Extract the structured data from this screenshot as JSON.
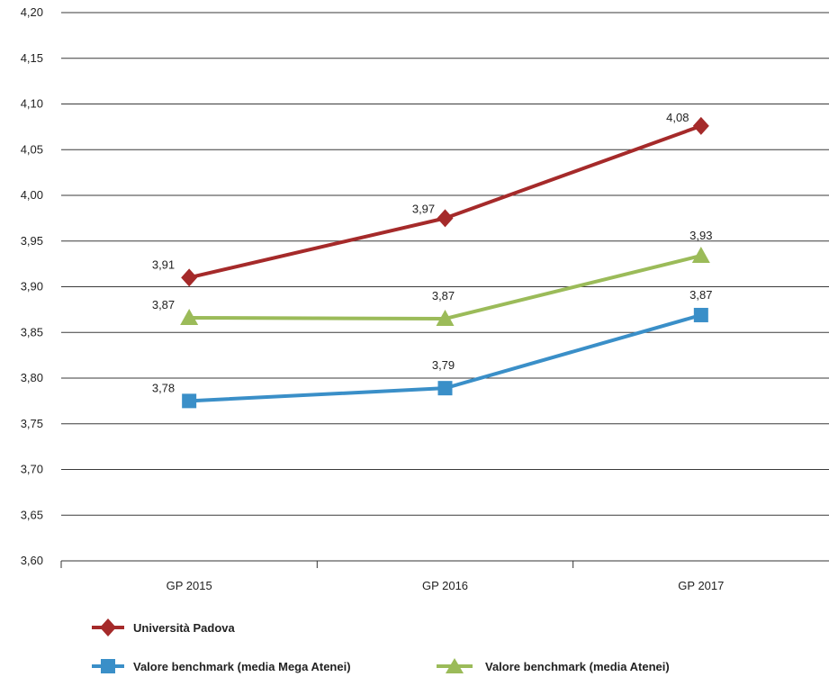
{
  "chart_data": {
    "type": "line",
    "categories": [
      "GP 2015",
      "GP 2016",
      "GP 2017"
    ],
    "ylim": [
      3.6,
      4.2
    ],
    "ytick_step": 0.05,
    "yticks": [
      "3,60",
      "3,65",
      "3,70",
      "3,75",
      "3,80",
      "3,85",
      "3,90",
      "3,95",
      "4,00",
      "4,05",
      "4,10",
      "4,15",
      "4,20"
    ],
    "grid": true,
    "legend_position": "bottom",
    "series": [
      {
        "name": "Università Padova",
        "values": [
          3.91,
          3.975,
          4.076
        ],
        "labels": [
          "3,91",
          "3,97",
          "4,08"
        ],
        "color": "#a52a2a",
        "marker": "diamond"
      },
      {
        "name": "Valore benchmark (media Mega Atenei)",
        "values": [
          3.775,
          3.789,
          3.869
        ],
        "labels": [
          "3,78",
          "3,79",
          "3,87"
        ],
        "color": "#3a8fc8",
        "marker": "square"
      },
      {
        "name": "Valore benchmark (media Atenei)",
        "values": [
          3.866,
          3.865,
          3.934
        ],
        "labels": [
          "3,87",
          "3,87",
          "3,93"
        ],
        "color": "#9bbb59",
        "marker": "triangle"
      }
    ]
  }
}
